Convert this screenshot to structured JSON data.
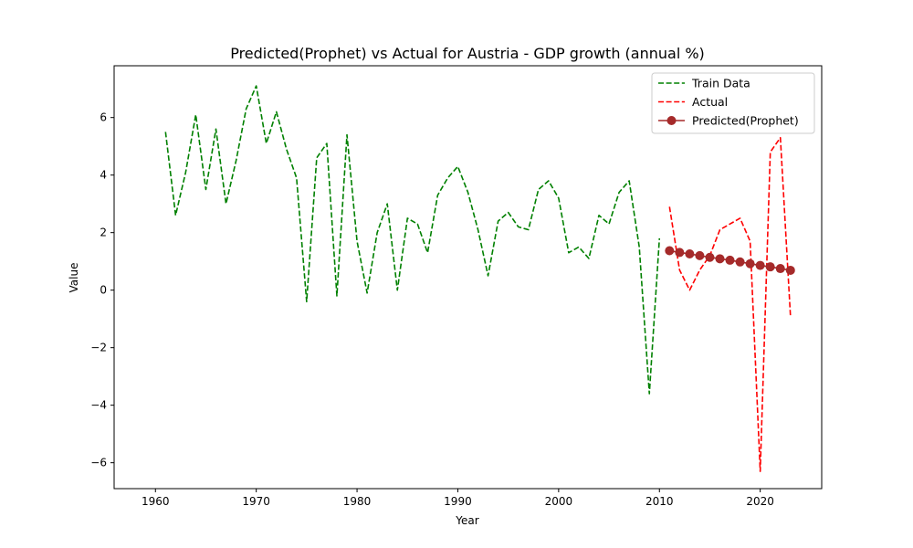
{
  "chart_data": {
    "type": "line",
    "title": "Predicted(Prophet) vs Actual for Austria - GDP growth (annual %)",
    "xlabel": "Year",
    "ylabel": "Value",
    "xlim": [
      1955.9,
      2026.1
    ],
    "ylim": [
      -6.9,
      7.8
    ],
    "xticks": [
      1960,
      1970,
      1980,
      1990,
      2000,
      2010,
      2020
    ],
    "yticks": [
      -6,
      -4,
      -2,
      0,
      2,
      4,
      6
    ],
    "xtick_labels": [
      "1960",
      "1970",
      "1980",
      "1990",
      "2000",
      "2010",
      "2020"
    ],
    "ytick_labels": [
      "−6",
      "−4",
      "−2",
      "0",
      "2",
      "4",
      "6"
    ],
    "grid": false,
    "legend_position": "top-right",
    "series": [
      {
        "name": "Train Data",
        "style": "dashed",
        "color": "#008000",
        "marker": "none",
        "x": [
          1961,
          1962,
          1963,
          1964,
          1965,
          1966,
          1967,
          1968,
          1969,
          1970,
          1971,
          1972,
          1973,
          1974,
          1975,
          1976,
          1977,
          1978,
          1979,
          1980,
          1981,
          1982,
          1983,
          1984,
          1985,
          1986,
          1987,
          1988,
          1989,
          1990,
          1991,
          1992,
          1993,
          1994,
          1995,
          1996,
          1997,
          1998,
          1999,
          2000,
          2001,
          2002,
          2003,
          2004,
          2005,
          2006,
          2007,
          2008,
          2009,
          2010
        ],
        "y": [
          5.5,
          2.6,
          4.1,
          6.1,
          3.5,
          5.6,
          3.0,
          4.5,
          6.3,
          7.1,
          5.1,
          6.2,
          4.9,
          3.9,
          -0.4,
          4.6,
          5.1,
          -0.2,
          5.4,
          1.7,
          -0.1,
          2.0,
          3.0,
          0.0,
          2.5,
          2.3,
          1.3,
          3.3,
          3.9,
          4.3,
          3.4,
          2.1,
          0.5,
          2.4,
          2.7,
          2.2,
          2.1,
          3.5,
          3.8,
          3.2,
          1.3,
          1.5,
          1.1,
          2.6,
          2.3,
          3.4,
          3.8,
          1.5,
          -3.6,
          1.8
        ]
      },
      {
        "name": "Actual",
        "style": "dashed",
        "color": "#ff0000",
        "marker": "none",
        "x": [
          2011,
          2012,
          2013,
          2014,
          2015,
          2016,
          2017,
          2018,
          2019,
          2020,
          2021,
          2022,
          2023
        ],
        "y": [
          2.9,
          0.7,
          0.0,
          0.7,
          1.2,
          2.1,
          2.3,
          2.5,
          1.7,
          -6.3,
          4.8,
          5.3,
          -0.9
        ]
      },
      {
        "name": "Predicted(Prophet)",
        "style": "solid",
        "color": "#a52a2a",
        "marker": "circle",
        "x": [
          2011,
          2012,
          2013,
          2014,
          2015,
          2016,
          2017,
          2018,
          2019,
          2020,
          2021,
          2022,
          2023
        ],
        "y": [
          1.37,
          1.31,
          1.26,
          1.2,
          1.14,
          1.09,
          1.04,
          0.98,
          0.92,
          0.86,
          0.81,
          0.75,
          0.69
        ]
      }
    ]
  }
}
